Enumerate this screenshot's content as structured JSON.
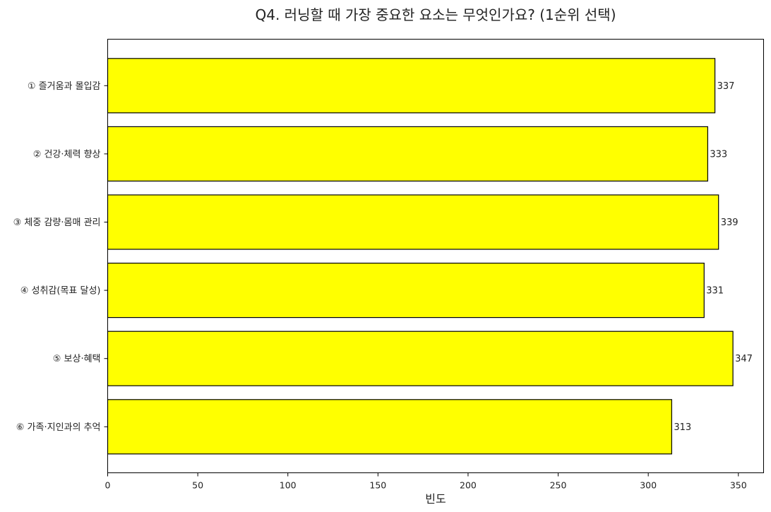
{
  "chart_data": {
    "type": "bar",
    "orientation": "horizontal",
    "title": "Q4. 러닝할 때 가장 중요한 요소는 무엇인가요? (1순위 선택)",
    "xlabel": "빈도",
    "ylabel": "",
    "categories": [
      "① 즐거움과 몰입감",
      "② 건강·체력 향상",
      "③ 체중 감량·몸매 관리",
      "④ 성취감(목표 달성)",
      "⑤ 보상·혜택",
      "⑥ 가족·지인과의 추억"
    ],
    "values": [
      337,
      333,
      339,
      331,
      347,
      313
    ],
    "data_labels": [
      "337",
      "333",
      "339",
      "331",
      "347",
      "313"
    ],
    "xlim": [
      0,
      364
    ],
    "xticks": [
      0,
      50,
      100,
      150,
      200,
      250,
      300,
      350
    ],
    "xtick_labels": [
      "0",
      "50",
      "100",
      "150",
      "200",
      "250",
      "300",
      "350"
    ],
    "bar_color": "#ffff00",
    "edge_color": "#000000",
    "grid": false
  }
}
